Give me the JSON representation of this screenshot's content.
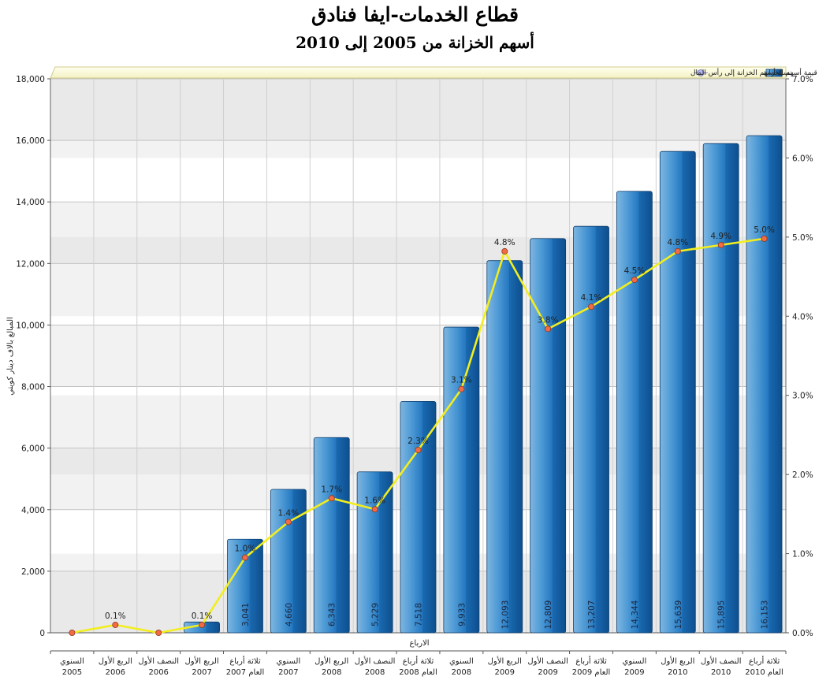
{
  "page": {
    "title": "قطاع الخدمات-ايفا فنادق",
    "subtitle": "أسهم الخزانة من 2005 إلى 2010"
  },
  "chart_data": {
    "type": "bar",
    "xlabel": "الارباع",
    "ylabel": "المبالغ بالاف دينار كويتي",
    "ylim": [
      0,
      18000
    ],
    "y_ticks": [
      "0",
      "2,000",
      "4,000",
      "6,000",
      "8,000",
      "10,000",
      "12,000",
      "14,000",
      "16,000",
      "18,000"
    ],
    "y2lim": [
      0,
      7
    ],
    "y2_ticks": [
      "0.0%",
      "1.0%",
      "2.0%",
      "3.0%",
      "4.0%",
      "5.0%",
      "6.0%",
      "7.0%"
    ],
    "grid": true,
    "legend_position": "top",
    "categories": [
      [
        "السنوي",
        "2005"
      ],
      [
        "الربع الأول",
        "2006"
      ],
      [
        "النصف الأول",
        "2006"
      ],
      [
        "الربع الأول",
        "2007"
      ],
      [
        "ثلاثة أرباع",
        "العام 2007"
      ],
      [
        "السنوي",
        "2007"
      ],
      [
        "الربع الأول",
        "2008"
      ],
      [
        "النصف الأول",
        "2008"
      ],
      [
        "ثلاثة أرباع",
        "العام 2008"
      ],
      [
        "السنوي",
        "2008"
      ],
      [
        "الربع الأول",
        "2009"
      ],
      [
        "النصف الأول",
        "2009"
      ],
      [
        "ثلاثة أرباع",
        "العام 2009"
      ],
      [
        "السنوي",
        "2009"
      ],
      [
        "الربع الأول",
        "2010"
      ],
      [
        "النصف الأول",
        "2010"
      ],
      [
        "ثلاثة أرباع",
        "العام 2010"
      ]
    ],
    "series": [
      {
        "name": "قيمة أسهم الخزانة",
        "kind": "bar",
        "color": "#2f86c8",
        "values": [
          0,
          0,
          0,
          350,
          3041,
          4660,
          6343,
          5229,
          7518,
          9933,
          12093,
          12809,
          13207,
          14344,
          15639,
          15895,
          16153
        ],
        "labels": [
          "",
          "",
          "",
          "",
          "3,041",
          "4,660",
          "6,343",
          "5,229",
          "7,518",
          "9,933",
          "12,093",
          "12,809",
          "13,207",
          "14,344",
          "15,639",
          "15,895",
          "16,153"
        ]
      },
      {
        "name": "نسبة أسهم الخزانة إلى رأس المال",
        "kind": "line",
        "axis": "right",
        "color": "#f2ee1e",
        "marker_color": "#f26b45",
        "values": [
          0.0,
          0.1,
          0.0,
          0.1,
          0.95,
          1.4,
          1.7,
          1.56,
          2.31,
          3.08,
          4.82,
          3.84,
          4.12,
          4.46,
          4.82,
          4.9,
          4.98
        ],
        "labels": [
          "",
          "0.1%",
          "",
          "0.1%",
          "1.0%",
          "1.4%",
          "1.7%",
          "1.6%",
          "2.3%",
          "3.1%",
          "4.8%",
          "3.8%",
          "4.1%",
          "4.5%",
          "4.8%",
          "4.9%",
          "5.0%"
        ]
      }
    ]
  }
}
